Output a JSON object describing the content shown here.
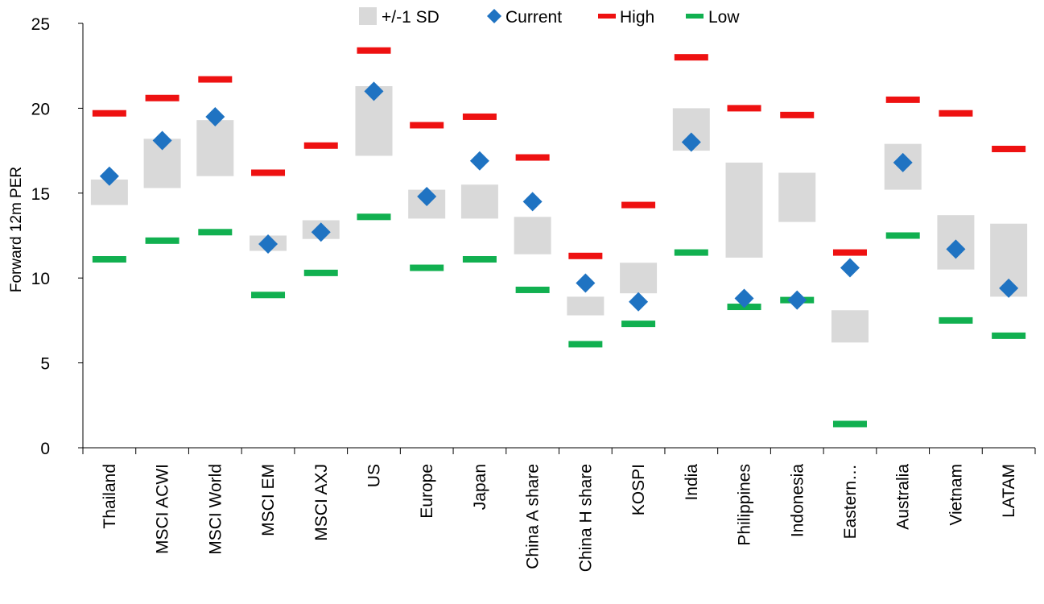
{
  "chart_data": {
    "type": "range-marker",
    "ylabel": "Forward 12m PER",
    "ylim": [
      0,
      25
    ],
    "yticks": [
      0,
      5,
      10,
      15,
      20,
      25
    ],
    "grid": false,
    "legend": {
      "placement": "top-center",
      "items": [
        {
          "key": "sd",
          "label": "+/-1 SD",
          "color": "#d9d9d9",
          "marker": "square"
        },
        {
          "key": "current",
          "label": "Current",
          "color": "#1f73c2",
          "marker": "diamond"
        },
        {
          "key": "high",
          "label": "High",
          "color": "#ee1111",
          "marker": "dash"
        },
        {
          "key": "low",
          "label": "Low",
          "color": "#11b050",
          "marker": "dash"
        }
      ]
    },
    "categories": [
      "Thailand",
      "MSCI ACWI",
      "MSCI World",
      "MSCI EM",
      "MSCI AXJ",
      "US",
      "Europe",
      "Japan",
      "China A share",
      "China H share",
      "KOSPI",
      "India",
      "Philippines",
      "Indonesia",
      "Eastern…",
      "Australia",
      "Vietnam",
      "LATAM"
    ],
    "series": [
      {
        "name": "+/-1 SD",
        "type": "range",
        "low": [
          14.3,
          15.3,
          16.0,
          11.6,
          12.3,
          17.2,
          13.5,
          13.5,
          11.4,
          7.8,
          9.1,
          17.5,
          11.2,
          13.3,
          6.2,
          15.2,
          10.5,
          8.9
        ],
        "high": [
          15.8,
          18.2,
          19.3,
          12.5,
          13.4,
          21.3,
          15.2,
          15.5,
          13.6,
          8.9,
          10.9,
          20.0,
          16.8,
          16.2,
          8.1,
          17.9,
          13.7,
          13.2
        ]
      },
      {
        "name": "Current",
        "type": "marker",
        "values": [
          16.0,
          18.1,
          19.5,
          12.0,
          12.7,
          21.0,
          14.8,
          16.9,
          14.5,
          9.7,
          8.6,
          18.0,
          8.8,
          8.7,
          10.6,
          16.8,
          11.7,
          9.4
        ]
      },
      {
        "name": "High",
        "type": "marker",
        "values": [
          19.7,
          20.6,
          21.7,
          16.2,
          17.8,
          23.4,
          19.0,
          19.5,
          17.1,
          11.3,
          14.3,
          23.0,
          20.0,
          19.6,
          11.5,
          20.5,
          19.7,
          17.6
        ]
      },
      {
        "name": "Low",
        "type": "marker",
        "values": [
          11.1,
          12.2,
          12.7,
          9.0,
          10.3,
          13.6,
          10.6,
          11.1,
          9.3,
          6.1,
          7.3,
          11.5,
          8.3,
          8.7,
          1.4,
          12.5,
          7.5,
          6.6
        ]
      }
    ]
  }
}
